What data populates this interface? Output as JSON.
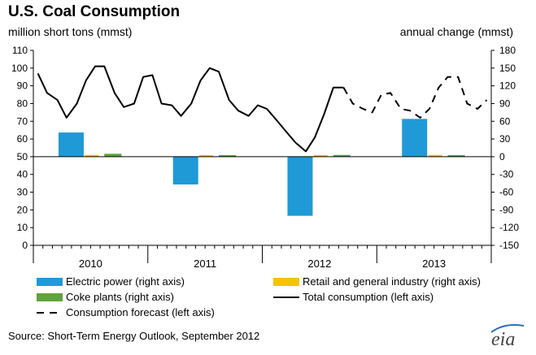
{
  "chart_data": {
    "type": "bar+line",
    "title": "U.S. Coal Consumption",
    "left_axis": {
      "label": "million short tons (mmst)",
      "range": [
        0,
        110
      ],
      "ticks": [
        0,
        10,
        20,
        30,
        40,
        50,
        60,
        70,
        80,
        90,
        100,
        110
      ]
    },
    "right_axis": {
      "label": "annual change (mmst)",
      "range": [
        -150,
        180
      ],
      "ticks": [
        -150,
        -120,
        -90,
        -60,
        -30,
        0,
        30,
        60,
        90,
        120,
        150,
        180
      ]
    },
    "years": [
      "2010",
      "2011",
      "2012",
      "2013"
    ],
    "bar_series": [
      {
        "name": "Electric power (right axis)",
        "color": "#1f9ad6",
        "values": [
          41,
          -47,
          -100,
          64
        ]
      },
      {
        "name": "Retail and general industry (right axis)",
        "color": "#f5c400",
        "values": [
          3,
          -2,
          -1,
          3
        ]
      },
      {
        "name": "Coke plants (right axis)",
        "color": "#5fa33b",
        "values": [
          5,
          0,
          3,
          1
        ]
      }
    ],
    "line_series": [
      {
        "name": "Total consumption (left axis)",
        "style": "solid",
        "color": "#000000",
        "x": [
          2010.04,
          2010.12,
          2010.21,
          2010.29,
          2010.38,
          2010.46,
          2010.54,
          2010.62,
          2010.71,
          2010.79,
          2010.88,
          2010.96,
          2011.04,
          2011.12,
          2011.21,
          2011.29,
          2011.38,
          2011.46,
          2011.54,
          2011.62,
          2011.71,
          2011.79,
          2011.88,
          2011.96,
          2012.04,
          2012.12,
          2012.21,
          2012.29,
          2012.38,
          2012.46,
          2012.54,
          2012.62,
          2012.71
        ],
        "y": [
          97,
          86,
          82,
          72,
          80,
          93,
          101,
          101,
          86,
          78,
          80,
          95,
          96,
          80,
          79,
          73,
          80,
          93,
          100,
          98,
          82,
          76,
          73,
          79,
          77,
          71,
          64,
          58,
          53,
          61,
          74,
          89,
          89
        ]
      },
      {
        "name": "Consumption forecast (left axis)",
        "style": "dashed",
        "color": "#000000",
        "x": [
          2012.71,
          2012.79,
          2012.88,
          2012.96,
          2013.04,
          2013.12,
          2013.21,
          2013.29,
          2013.38,
          2013.46,
          2013.54,
          2013.62,
          2013.71,
          2013.79,
          2013.88,
          2013.96
        ],
        "y": [
          89,
          80,
          77,
          75,
          85,
          86,
          77,
          76,
          72,
          77,
          89,
          95,
          95,
          80,
          77,
          82
        ]
      }
    ],
    "legend": [
      {
        "name": "Electric power (right axis)",
        "kind": "bar",
        "color": "#1f9ad6"
      },
      {
        "name": "Retail and general industry (right axis)",
        "kind": "bar",
        "color": "#f5c400"
      },
      {
        "name": "Coke plants (right axis)",
        "kind": "bar",
        "color": "#5fa33b"
      },
      {
        "name": "Total consumption (left axis)",
        "kind": "line-solid",
        "color": "#000000"
      },
      {
        "name": "Consumption forecast (left axis)",
        "kind": "line-dashed",
        "color": "#000000"
      }
    ],
    "legend_placement": "bottom",
    "grid": false
  },
  "source": "Source: Short-Term Energy Outlook, September 2012",
  "logo": "eia"
}
